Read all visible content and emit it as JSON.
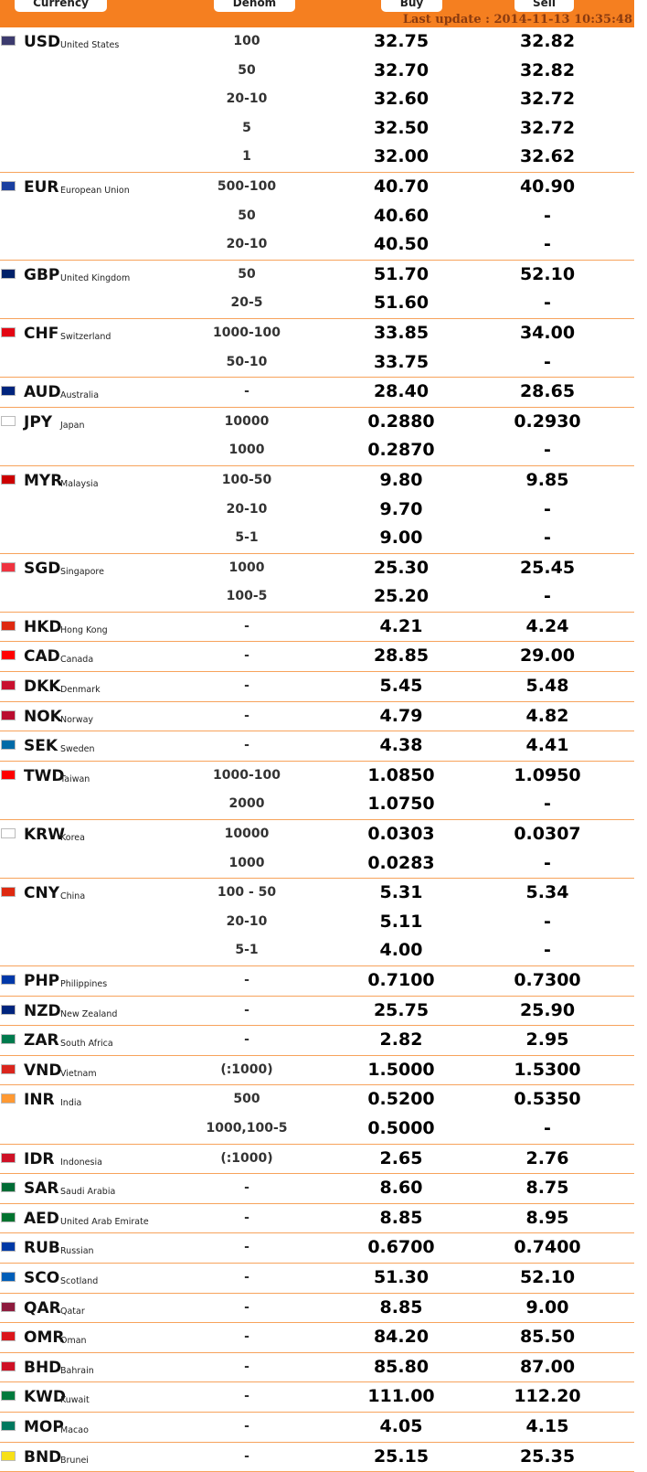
{
  "header": {
    "currency_label": "Currency",
    "denom_label": "Denom",
    "buy_label": "Buy",
    "sell_label": "Sell",
    "last_update": "Last update : 2014-11-13 10:35:48"
  },
  "rates": [
    {
      "code": "USD",
      "country": "United States",
      "rows": [
        [
          "100",
          "32.75",
          "32.82"
        ],
        [
          "50",
          "32.70",
          "32.82"
        ],
        [
          "20-10",
          "32.60",
          "32.72"
        ],
        [
          "5",
          "32.50",
          "32.72"
        ],
        [
          "1",
          "32.00",
          "32.62"
        ]
      ]
    },
    {
      "code": "EUR",
      "country": "European Union",
      "rows": [
        [
          "500-100",
          "40.70",
          "40.90"
        ],
        [
          "50",
          "40.60",
          "-"
        ],
        [
          "20-10",
          "40.50",
          "-"
        ]
      ]
    },
    {
      "code": "GBP",
      "country": "United Kingdom",
      "rows": [
        [
          "50",
          "51.70",
          "52.10"
        ],
        [
          "20-5",
          "51.60",
          "-"
        ]
      ]
    },
    {
      "code": "CHF",
      "country": "Switzerland",
      "rows": [
        [
          "1000-100",
          "33.85",
          "34.00"
        ],
        [
          "50-10",
          "33.75",
          "-"
        ]
      ]
    },
    {
      "code": "AUD",
      "country": "Australia",
      "rows": [
        [
          "-",
          "28.40",
          "28.65"
        ]
      ]
    },
    {
      "code": "JPY",
      "country": "Japan",
      "rows": [
        [
          "10000",
          "0.2880",
          "0.2930"
        ],
        [
          "1000",
          "0.2870",
          "-"
        ]
      ]
    },
    {
      "code": "MYR",
      "country": "Malaysia",
      "rows": [
        [
          "100-50",
          "9.80",
          "9.85"
        ],
        [
          "20-10",
          "9.70",
          "-"
        ],
        [
          "5-1",
          "9.00",
          "-"
        ]
      ]
    },
    {
      "code": "SGD",
      "country": "Singapore",
      "rows": [
        [
          "1000",
          "25.30",
          "25.45"
        ],
        [
          "100-5",
          "25.20",
          "-"
        ]
      ]
    },
    {
      "code": "HKD",
      "country": "Hong Kong",
      "rows": [
        [
          "-",
          "4.21",
          "4.24"
        ]
      ]
    },
    {
      "code": "CAD",
      "country": "Canada",
      "rows": [
        [
          "-",
          "28.85",
          "29.00"
        ]
      ]
    },
    {
      "code": "DKK",
      "country": "Denmark",
      "rows": [
        [
          "-",
          "5.45",
          "5.48"
        ]
      ]
    },
    {
      "code": "NOK",
      "country": "Norway",
      "rows": [
        [
          "-",
          "4.79",
          "4.82"
        ]
      ]
    },
    {
      "code": "SEK",
      "country": "Sweden",
      "rows": [
        [
          "-",
          "4.38",
          "4.41"
        ]
      ]
    },
    {
      "code": "TWD",
      "country": "Taiwan",
      "rows": [
        [
          "1000-100",
          "1.0850",
          "1.0950"
        ],
        [
          "2000",
          "1.0750",
          "-"
        ]
      ]
    },
    {
      "code": "KRW",
      "country": "Korea",
      "rows": [
        [
          "10000",
          "0.0303",
          "0.0307"
        ],
        [
          "1000",
          "0.0283",
          "-"
        ]
      ]
    },
    {
      "code": "CNY",
      "country": "China",
      "rows": [
        [
          "100 - 50",
          "5.31",
          "5.34"
        ],
        [
          "20-10",
          "5.11",
          "-"
        ],
        [
          "5-1",
          "4.00",
          "-"
        ]
      ]
    },
    {
      "code": "PHP",
      "country": "Philippines",
      "rows": [
        [
          "-",
          "0.7100",
          "0.7300"
        ]
      ]
    },
    {
      "code": "NZD",
      "country": "New Zealand",
      "rows": [
        [
          "-",
          "25.75",
          "25.90"
        ]
      ]
    },
    {
      "code": "ZAR",
      "country": "South Africa",
      "rows": [
        [
          "-",
          "2.82",
          "2.95"
        ]
      ]
    },
    {
      "code": "VND",
      "country": "Vietnam",
      "rows": [
        [
          "(:1000)",
          "1.5000",
          "1.5300"
        ]
      ]
    },
    {
      "code": "INR",
      "country": "India",
      "rows": [
        [
          "500",
          "0.5200",
          "0.5350"
        ],
        [
          "1000,100-5",
          "0.5000",
          "-"
        ]
      ]
    },
    {
      "code": "IDR",
      "country": "Indonesia",
      "rows": [
        [
          "(:1000)",
          "2.65",
          "2.76"
        ]
      ]
    },
    {
      "code": "SAR",
      "country": "Saudi Arabia",
      "rows": [
        [
          "-",
          "8.60",
          "8.75"
        ]
      ]
    },
    {
      "code": "AED",
      "country": "United Arab Emirate",
      "rows": [
        [
          "-",
          "8.85",
          "8.95"
        ]
      ]
    },
    {
      "code": "RUB",
      "country": "Russian",
      "rows": [
        [
          "-",
          "0.6700",
          "0.7400"
        ]
      ]
    },
    {
      "code": "SCO",
      "country": "Scotland",
      "rows": [
        [
          "-",
          "51.30",
          "52.10"
        ]
      ]
    },
    {
      "code": "QAR",
      "country": "Qatar",
      "rows": [
        [
          "-",
          "8.85",
          "9.00"
        ]
      ]
    },
    {
      "code": "OMR",
      "country": "Oman",
      "rows": [
        [
          "-",
          "84.20",
          "85.50"
        ]
      ]
    },
    {
      "code": "BHD",
      "country": "Bahrain",
      "rows": [
        [
          "-",
          "85.80",
          "87.00"
        ]
      ]
    },
    {
      "code": "KWD",
      "country": "Kuwait",
      "rows": [
        [
          "-",
          "111.00",
          "112.20"
        ]
      ]
    },
    {
      "code": "MOP",
      "country": "Macao",
      "rows": [
        [
          "-",
          "4.05",
          "4.15"
        ]
      ]
    },
    {
      "code": "BND",
      "country": "Brunei",
      "rows": [
        [
          "-",
          "25.15",
          "25.35"
        ]
      ]
    }
  ],
  "flag_colors": {
    "USD": "#3c3b6e",
    "EUR": "#1a3fa0",
    "GBP": "#012169",
    "CHF": "#e30613",
    "AUD": "#00247d",
    "JPY": "#ffffff",
    "MYR": "#cc0001",
    "SGD": "#ef3340",
    "HKD": "#de2910",
    "CAD": "#ff0000",
    "DKK": "#c8102e",
    "NOK": "#ba0c2f",
    "SEK": "#006aa7",
    "TWD": "#fe0000",
    "KRW": "#ffffff",
    "CNY": "#de2910",
    "PHP": "#0038a8",
    "NZD": "#00247d",
    "ZAR": "#007a4d",
    "VND": "#da251d",
    "INR": "#ff9933",
    "IDR": "#ce1126",
    "SAR": "#006c35",
    "AED": "#00732f",
    "RUB": "#0039a6",
    "SCO": "#005eb8",
    "QAR": "#8d1b3d",
    "OMR": "#db161b",
    "BHD": "#ce1126",
    "KWD": "#007a3d",
    "MOP": "#00785e",
    "BND": "#f7e017"
  },
  "colors": {
    "header_bg": "#f57f20",
    "divider": "#f7a35c",
    "update_text": "#8a3b10"
  }
}
